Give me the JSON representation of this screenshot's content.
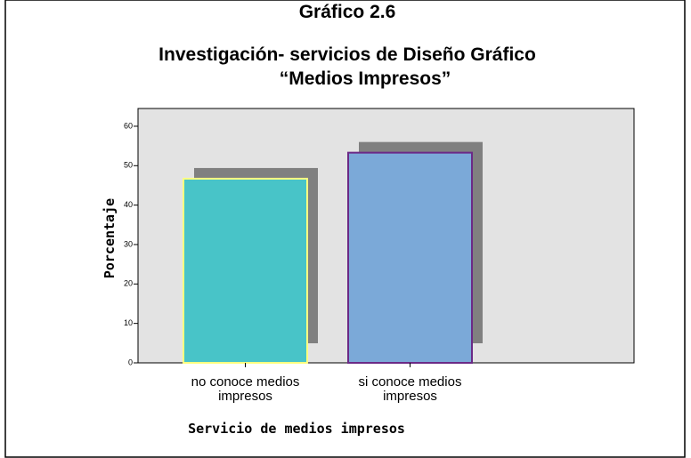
{
  "chart_data": {
    "type": "bar",
    "title": [
      "Gráfico  2.6",
      "Investigación- servicios de Diseño  Gráfico",
      "“Medios Impresos”"
    ],
    "categories": [
      "no conoce medios impresos",
      "si conoce medios impresos"
    ],
    "values": [
      46.7,
      53.3
    ],
    "colors": [
      "#48c4c8",
      "#7ba9d8"
    ],
    "edgecolors": [
      "#ffff80",
      "#6b2a86"
    ],
    "xlabel": "Servicio de medios impresos",
    "ylabel": "Porcentaje",
    "ylim": [
      0,
      64.5
    ],
    "yticks": [
      0,
      10,
      20,
      30,
      40,
      50,
      60
    ]
  }
}
